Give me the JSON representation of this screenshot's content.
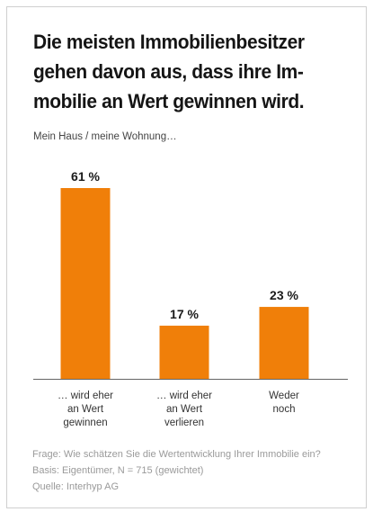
{
  "title_lines": [
    "Die meisten Immobilienbesitzer",
    "gehen davon aus, dass ihre Im-",
    "mobilie an Wert gewinnen wird."
  ],
  "subtitle": "Mein Haus / meine Wohnung…",
  "colors": {
    "bar": "#f07f09",
    "axis": "#666666",
    "title": "#151515",
    "footer": "#9a9a9a"
  },
  "chart_data": {
    "type": "bar",
    "categories": [
      [
        "… wird eher",
        "an Wert",
        "gewinnen"
      ],
      [
        "… wird eher",
        "an Wert",
        "verlieren"
      ],
      [
        "Weder",
        "noch"
      ]
    ],
    "values": [
      61,
      17,
      23
    ],
    "value_labels": [
      "61 %",
      "17 %",
      "23 %"
    ],
    "unit": "%",
    "ylim": [
      0,
      61
    ],
    "grid": false
  },
  "footer": {
    "question": "Frage: Wie schätzen Sie die Wertentwicklung Ihrer Immobilie ein?",
    "basis": "Basis: Eigentümer, N = 715 (gewichtet)",
    "source": "Quelle: Interhyp AG"
  }
}
